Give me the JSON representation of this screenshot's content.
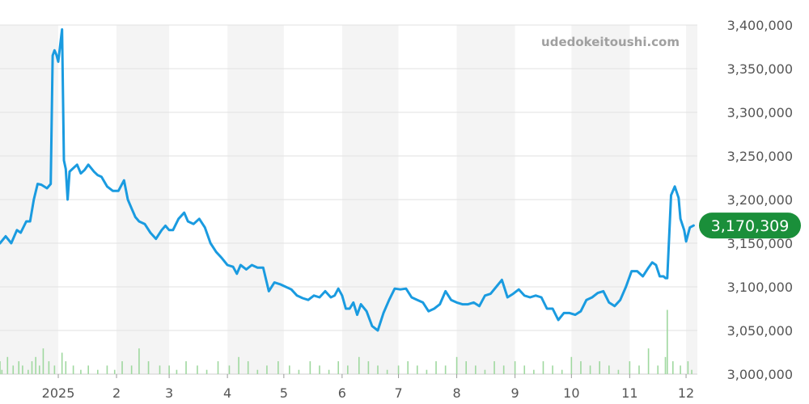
{
  "watermark": "udedokeitoushi.com",
  "chart_data": {
    "type": "line",
    "title": "",
    "xlabel": "",
    "ylabel": "",
    "ylim": [
      3000000,
      3400000
    ],
    "yticks": [
      3000000,
      3050000,
      3100000,
      3150000,
      3200000,
      3250000,
      3300000,
      3350000,
      3400000
    ],
    "ytick_labels": [
      "3,000,000",
      "3,050,000",
      "3,100,000",
      "3,150,000",
      "3,200,000",
      "3,250,000",
      "3,300,000",
      "3,350,000",
      "3,400,000"
    ],
    "xlim": [
      "2024-12-01",
      "2025-12-07"
    ],
    "xticks": [
      {
        "date": "2025-01-01",
        "label": "2025"
      },
      {
        "date": "2025-02-01",
        "label": "2"
      },
      {
        "date": "2025-03-01",
        "label": "3"
      },
      {
        "date": "2025-04-01",
        "label": "4"
      },
      {
        "date": "2025-05-01",
        "label": "5"
      },
      {
        "date": "2025-06-01",
        "label": "6"
      },
      {
        "date": "2025-07-01",
        "label": "7"
      },
      {
        "date": "2025-08-01",
        "label": "8"
      },
      {
        "date": "2025-09-01",
        "label": "9"
      },
      {
        "date": "2025-10-01",
        "label": "10"
      },
      {
        "date": "2025-11-01",
        "label": "11"
      },
      {
        "date": "2025-12-01",
        "label": "12"
      }
    ],
    "grid": true,
    "alternating_month_bands": true,
    "line_color": "#1a9be0",
    "volume_color": "#9fd89f",
    "latest_value": 3170309,
    "latest_label": "3,170,309",
    "latest_badge_color": "#1a8f3a",
    "series": [
      {
        "x": [
          "2024-12-01",
          "2024-12-04",
          "2024-12-07",
          "2024-12-10",
          "2024-12-12",
          "2024-12-15",
          "2024-12-17",
          "2024-12-19",
          "2024-12-21",
          "2024-12-23",
          "2024-12-26",
          "2024-12-28",
          "2024-12-29",
          "2024-12-30",
          "2024-12-31",
          "2025-01-01",
          "2025-01-03",
          "2025-01-04",
          "2025-01-05",
          "2025-01-06",
          "2025-01-07",
          "2025-01-09",
          "2025-01-11",
          "2025-01-13",
          "2025-01-15",
          "2025-01-17",
          "2025-01-20",
          "2025-01-22",
          "2025-01-24",
          "2025-01-27",
          "2025-01-30",
          "2025-02-02",
          "2025-02-05",
          "2025-02-07",
          "2025-02-09",
          "2025-02-11",
          "2025-02-13",
          "2025-02-16",
          "2025-02-19",
          "2025-02-22",
          "2025-02-25",
          "2025-02-27",
          "2025-03-01",
          "2025-03-03",
          "2025-03-06",
          "2025-03-09",
          "2025-03-11",
          "2025-03-14",
          "2025-03-17",
          "2025-03-20",
          "2025-03-23",
          "2025-03-26",
          "2025-03-29",
          "2025-04-01",
          "2025-04-04",
          "2025-04-06",
          "2025-04-08",
          "2025-04-11",
          "2025-04-14",
          "2025-04-17",
          "2025-04-20",
          "2025-04-23",
          "2025-04-26",
          "2025-04-29",
          "2025-05-02",
          "2025-05-05",
          "2025-05-08",
          "2025-05-11",
          "2025-05-14",
          "2025-05-17",
          "2025-05-20",
          "2025-05-23",
          "2025-05-26",
          "2025-05-28",
          "2025-05-30",
          "2025-06-01",
          "2025-06-03",
          "2025-06-05",
          "2025-06-07",
          "2025-06-09",
          "2025-06-11",
          "2025-06-14",
          "2025-06-17",
          "2025-06-20",
          "2025-06-23",
          "2025-06-26",
          "2025-06-29",
          "2025-07-02",
          "2025-07-05",
          "2025-07-08",
          "2025-07-11",
          "2025-07-14",
          "2025-07-17",
          "2025-07-20",
          "2025-07-23",
          "2025-07-26",
          "2025-07-29",
          "2025-08-01",
          "2025-08-04",
          "2025-08-07",
          "2025-08-10",
          "2025-08-13",
          "2025-08-16",
          "2025-08-19",
          "2025-08-22",
          "2025-08-25",
          "2025-08-28",
          "2025-08-31",
          "2025-09-03",
          "2025-09-06",
          "2025-09-09",
          "2025-09-12",
          "2025-09-15",
          "2025-09-18",
          "2025-09-21",
          "2025-09-24",
          "2025-09-27",
          "2025-09-30",
          "2025-10-03",
          "2025-10-06",
          "2025-10-09",
          "2025-10-12",
          "2025-10-15",
          "2025-10-18",
          "2025-10-21",
          "2025-10-24",
          "2025-10-27",
          "2025-10-30",
          "2025-11-02",
          "2025-11-05",
          "2025-11-08",
          "2025-11-11",
          "2025-11-13",
          "2025-11-15",
          "2025-11-17",
          "2025-11-19",
          "2025-11-20",
          "2025-11-21",
          "2025-11-23",
          "2025-11-25",
          "2025-11-27",
          "2025-11-28",
          "2025-11-30",
          "2025-12-01",
          "2025-12-03",
          "2025-12-05"
        ],
        "values": [
          3150000,
          3158000,
          3150000,
          3165000,
          3162000,
          3175000,
          3175000,
          3200000,
          3218000,
          3217000,
          3213000,
          3218000,
          3365000,
          3371000,
          3366000,
          3358000,
          3395000,
          3245000,
          3235000,
          3200000,
          3232000,
          3236000,
          3240000,
          3230000,
          3234000,
          3240000,
          3232000,
          3228000,
          3226000,
          3215000,
          3210000,
          3210000,
          3222000,
          3200000,
          3190000,
          3180000,
          3175000,
          3172000,
          3162000,
          3155000,
          3165000,
          3170000,
          3165000,
          3165000,
          3178000,
          3185000,
          3175000,
          3172000,
          3178000,
          3168000,
          3150000,
          3140000,
          3133000,
          3125000,
          3123000,
          3115000,
          3125000,
          3120000,
          3125000,
          3122000,
          3122000,
          3095000,
          3105000,
          3103000,
          3100000,
          3097000,
          3090000,
          3087000,
          3085000,
          3090000,
          3088000,
          3095000,
          3088000,
          3090000,
          3098000,
          3090000,
          3075000,
          3075000,
          3082000,
          3068000,
          3080000,
          3072000,
          3055000,
          3050000,
          3070000,
          3085000,
          3098000,
          3097000,
          3098000,
          3088000,
          3085000,
          3082000,
          3072000,
          3075000,
          3080000,
          3095000,
          3085000,
          3082000,
          3080000,
          3080000,
          3082000,
          3078000,
          3090000,
          3092000,
          3100000,
          3108000,
          3088000,
          3092000,
          3097000,
          3090000,
          3088000,
          3090000,
          3088000,
          3075000,
          3075000,
          3062000,
          3070000,
          3070000,
          3068000,
          3072000,
          3085000,
          3088000,
          3093000,
          3095000,
          3082000,
          3078000,
          3085000,
          3100000,
          3118000,
          3118000,
          3112000,
          3122000,
          3128000,
          3125000,
          3112000,
          3112000,
          3110000,
          3110000,
          3205000,
          3215000,
          3202000,
          3178000,
          3165000,
          3152000,
          3168000,
          3170309
        ]
      }
    ],
    "volume": {
      "x": [
        "2024-12-01",
        "2024-12-02",
        "2024-12-05",
        "2024-12-08",
        "2024-12-11",
        "2024-12-13",
        "2024-12-16",
        "2024-12-18",
        "2024-12-20",
        "2024-12-22",
        "2024-12-24",
        "2024-12-27",
        "2024-12-30",
        "2025-01-03",
        "2025-01-05",
        "2025-01-09",
        "2025-01-13",
        "2025-01-17",
        "2025-01-22",
        "2025-01-27",
        "2025-01-31",
        "2025-02-04",
        "2025-02-09",
        "2025-02-13",
        "2025-02-18",
        "2025-02-24",
        "2025-03-01",
        "2025-03-05",
        "2025-03-10",
        "2025-03-16",
        "2025-03-21",
        "2025-03-27",
        "2025-04-02",
        "2025-04-07",
        "2025-04-12",
        "2025-04-17",
        "2025-04-22",
        "2025-04-28",
        "2025-05-04",
        "2025-05-09",
        "2025-05-15",
        "2025-05-20",
        "2025-05-25",
        "2025-05-30",
        "2025-06-04",
        "2025-06-10",
        "2025-06-15",
        "2025-06-20",
        "2025-06-25",
        "2025-07-01",
        "2025-07-06",
        "2025-07-11",
        "2025-07-16",
        "2025-07-21",
        "2025-07-26",
        "2025-08-01",
        "2025-08-06",
        "2025-08-11",
        "2025-08-16",
        "2025-08-21",
        "2025-08-26",
        "2025-09-01",
        "2025-09-06",
        "2025-09-11",
        "2025-09-16",
        "2025-09-21",
        "2025-09-26",
        "2025-10-01",
        "2025-10-06",
        "2025-10-11",
        "2025-10-16",
        "2025-10-21",
        "2025-10-26",
        "2025-11-01",
        "2025-11-06",
        "2025-11-11",
        "2025-11-16",
        "2025-11-20",
        "2025-11-21",
        "2025-11-24",
        "2025-11-28",
        "2025-12-02",
        "2025-12-04"
      ],
      "values": [
        3,
        1,
        4,
        2,
        3,
        2,
        1,
        3,
        4,
        2,
        6,
        3,
        2,
        5,
        3,
        2,
        1,
        2,
        1,
        2,
        1,
        3,
        2,
        6,
        3,
        2,
        2,
        1,
        3,
        2,
        1,
        3,
        2,
        4,
        3,
        1,
        2,
        3,
        2,
        1,
        3,
        2,
        1,
        3,
        2,
        4,
        3,
        2,
        1,
        2,
        3,
        2,
        1,
        3,
        2,
        4,
        3,
        2,
        1,
        3,
        2,
        3,
        2,
        1,
        3,
        2,
        1,
        4,
        3,
        2,
        3,
        2,
        1,
        3,
        2,
        6,
        2,
        4,
        15,
        3,
        2,
        3,
        1
      ]
    }
  }
}
